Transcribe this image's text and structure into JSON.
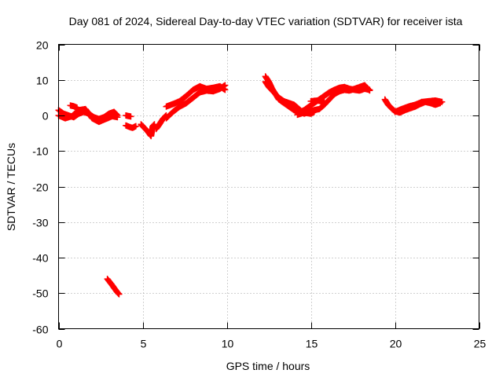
{
  "chart_data": {
    "type": "scatter",
    "title": "Day 081 of 2024, Sidereal Day-to-day VTEC variation (SDTVAR) for receiver ista",
    "xlabel": "GPS time / hours",
    "ylabel": "SDTVAR / TECUs",
    "xlim": [
      0,
      25
    ],
    "ylim": [
      -60,
      20
    ],
    "xticks": [
      0,
      5,
      10,
      15,
      20,
      25
    ],
    "yticks": [
      -60,
      -50,
      -40,
      -30,
      -20,
      -10,
      0,
      10,
      20
    ],
    "grid": true,
    "marker": "+",
    "color": "#ff0000",
    "series": [
      {
        "name": "SDTVAR",
        "segments": [
          [
            [
              0.0,
              1.5
            ],
            [
              0.3,
              0.5
            ],
            [
              0.6,
              0.0
            ],
            [
              0.9,
              -0.5
            ],
            [
              1.2,
              0.5
            ],
            [
              1.5,
              1.0
            ],
            [
              1.8,
              0.5
            ],
            [
              2.1,
              -0.5
            ],
            [
              2.4,
              -1.0
            ],
            [
              2.7,
              -0.5
            ],
            [
              3.0,
              0.5
            ],
            [
              3.3,
              1.0
            ],
            [
              3.5,
              0.0
            ]
          ],
          [
            [
              0.0,
              0.0
            ],
            [
              0.4,
              -0.8
            ],
            [
              0.8,
              -0.2
            ],
            [
              1.2,
              1.5
            ],
            [
              1.6,
              1.8
            ],
            [
              2.0,
              -0.8
            ],
            [
              2.4,
              -1.8
            ],
            [
              2.8,
              -1.0
            ],
            [
              3.2,
              -0.2
            ],
            [
              3.5,
              -0.5
            ]
          ],
          [
            [
              0.7,
              2.8
            ],
            [
              0.9,
              2.6
            ],
            [
              1.1,
              2.2
            ]
          ],
          [
            [
              4.0,
              0.0
            ],
            [
              4.3,
              -0.3
            ]
          ],
          [
            [
              4.0,
              -2.8
            ],
            [
              4.2,
              -3.2
            ],
            [
              4.4,
              -3.5
            ],
            [
              4.6,
              -3.0
            ]
          ],
          [
            [
              4.9,
              -2.5
            ],
            [
              5.1,
              -3.5
            ],
            [
              5.3,
              -4.5
            ],
            [
              5.5,
              -5.8
            ],
            [
              5.6,
              -3.0
            ],
            [
              5.7,
              -2.5
            ]
          ],
          [
            [
              5.8,
              -3.8
            ],
            [
              6.0,
              -2.5
            ],
            [
              6.2,
              -1.0
            ],
            [
              6.4,
              0.0
            ]
          ],
          [
            [
              6.4,
              -0.8
            ],
            [
              6.8,
              1.0
            ],
            [
              7.2,
              2.5
            ],
            [
              7.6,
              3.5
            ],
            [
              8.0,
              5.0
            ],
            [
              8.4,
              6.5
            ],
            [
              8.8,
              7.0
            ],
            [
              9.2,
              6.8
            ],
            [
              9.6,
              7.5
            ],
            [
              9.9,
              8.5
            ]
          ],
          [
            [
              6.4,
              2.5
            ],
            [
              6.8,
              3.2
            ],
            [
              7.2,
              4.0
            ],
            [
              7.6,
              5.5
            ],
            [
              8.0,
              7.2
            ],
            [
              8.4,
              8.2
            ],
            [
              8.8,
              7.5
            ],
            [
              9.2,
              7.8
            ],
            [
              9.6,
              8.2
            ],
            [
              9.9,
              7.2
            ]
          ],
          [
            [
              2.9,
              -46.0
            ],
            [
              3.1,
              -47.2
            ],
            [
              3.3,
              -48.5
            ],
            [
              3.5,
              -49.8
            ],
            [
              3.6,
              -50.3
            ]
          ],
          [
            [
              12.3,
              11.0
            ],
            [
              12.5,
              9.5
            ],
            [
              12.7,
              7.5
            ],
            [
              12.9,
              6.0
            ],
            [
              13.1,
              4.5
            ],
            [
              13.4,
              3.5
            ],
            [
              13.7,
              2.5
            ],
            [
              14.0,
              1.5
            ],
            [
              14.3,
              0.8
            ],
            [
              14.6,
              1.5
            ],
            [
              14.9,
              2.5
            ],
            [
              15.2,
              3.5
            ],
            [
              15.5,
              4.5
            ],
            [
              15.8,
              5.5
            ],
            [
              16.1,
              6.5
            ],
            [
              16.4,
              7.2
            ],
            [
              16.7,
              7.8
            ],
            [
              17.0,
              8.0
            ],
            [
              17.3,
              7.5
            ],
            [
              17.6,
              7.2
            ],
            [
              17.9,
              7.0
            ],
            [
              18.2,
              7.5
            ],
            [
              18.5,
              7.2
            ]
          ],
          [
            [
              12.3,
              9.5
            ],
            [
              12.5,
              8.0
            ],
            [
              12.8,
              6.5
            ],
            [
              13.1,
              5.0
            ],
            [
              13.4,
              4.0
            ],
            [
              13.7,
              3.5
            ],
            [
              14.0,
              3.0
            ],
            [
              14.3,
              1.8
            ],
            [
              14.6,
              0.5
            ],
            [
              14.9,
              1.0
            ],
            [
              15.2,
              1.5
            ],
            [
              15.5,
              1.8
            ],
            [
              15.8,
              3.0
            ],
            [
              16.1,
              4.5
            ],
            [
              16.4,
              6.0
            ],
            [
              16.7,
              6.8
            ],
            [
              17.0,
              7.2
            ],
            [
              17.3,
              7.0
            ],
            [
              17.6,
              7.5
            ],
            [
              17.9,
              8.0
            ],
            [
              18.2,
              8.5
            ],
            [
              18.5,
              7.0
            ]
          ],
          [
            [
              14.2,
              0.2
            ],
            [
              14.6,
              0.8
            ],
            [
              15.0,
              0.5
            ],
            [
              15.2,
              1.0
            ]
          ],
          [
            [
              15.0,
              4.0
            ],
            [
              15.4,
              4.2
            ],
            [
              15.8,
              3.8
            ]
          ],
          [
            [
              19.4,
              4.5
            ],
            [
              19.6,
              3.0
            ],
            [
              19.8,
              2.0
            ],
            [
              20.0,
              1.2
            ],
            [
              20.3,
              0.8
            ],
            [
              20.6,
              1.5
            ],
            [
              20.9,
              2.0
            ],
            [
              21.2,
              2.5
            ],
            [
              21.5,
              3.2
            ],
            [
              21.8,
              3.8
            ],
            [
              22.1,
              3.5
            ],
            [
              22.4,
              3.0
            ],
            [
              22.7,
              3.5
            ]
          ],
          [
            [
              20.0,
              1.0
            ],
            [
              20.4,
              1.8
            ],
            [
              20.8,
              2.5
            ],
            [
              21.2,
              3.0
            ],
            [
              21.6,
              3.8
            ],
            [
              22.0,
              4.0
            ],
            [
              22.4,
              4.2
            ],
            [
              22.8,
              3.8
            ]
          ]
        ]
      }
    ]
  }
}
